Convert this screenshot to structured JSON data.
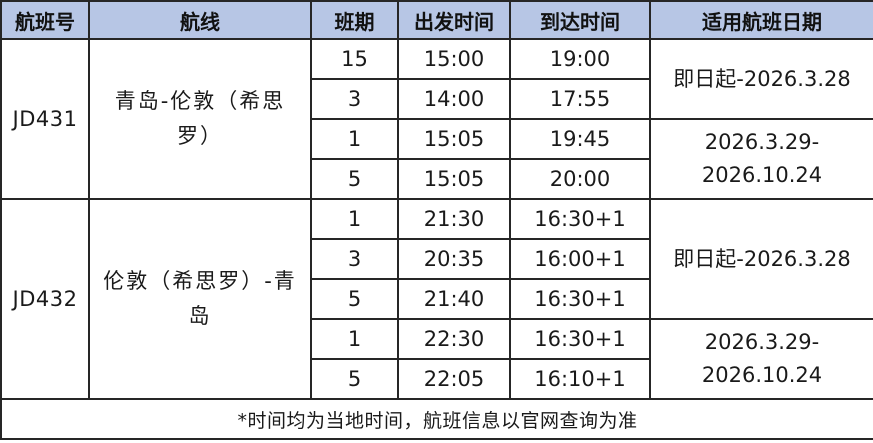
{
  "table": {
    "headers": [
      "航班号",
      "航线",
      "班期",
      "出发时间",
      "到达时间",
      "适用航班日期"
    ],
    "groups": [
      {
        "flight_no": "JD431",
        "route": "青岛-伦敦（希思\n罗）",
        "rows": [
          {
            "days": "15",
            "dep": "15:00",
            "arr": "19:00"
          },
          {
            "days": "3",
            "dep": "14:00",
            "arr": "17:55"
          },
          {
            "days": "1",
            "dep": "15:05",
            "arr": "19:45"
          },
          {
            "days": "5",
            "dep": "15:05",
            "arr": "20:00"
          }
        ],
        "date_ranges": [
          {
            "label": "即日起-2026.3.28",
            "span": 2
          },
          {
            "label": "2026.3.29-\n2026.10.24",
            "span": 2
          }
        ]
      },
      {
        "flight_no": "JD432",
        "route": "伦敦（希思罗）-青\n岛",
        "rows": [
          {
            "days": "1",
            "dep": "21:30",
            "arr": "16:30+1"
          },
          {
            "days": "3",
            "dep": "20:35",
            "arr": "16:00+1"
          },
          {
            "days": "5",
            "dep": "21:40",
            "arr": "16:30+1"
          },
          {
            "days": "1",
            "dep": "22:30",
            "arr": "16:30+1"
          },
          {
            "days": "5",
            "dep": "22:05",
            "arr": "16:10+1"
          }
        ],
        "date_ranges": [
          {
            "label": "即日起-2026.3.28",
            "span": 3
          },
          {
            "label": "2026.3.29-\n2026.10.24",
            "span": 2
          }
        ]
      }
    ],
    "footnote": "*时间均为当地时间，航班信息以官网查询为准"
  },
  "colors": {
    "header_bg": "#b7c6e5",
    "border": "#262626",
    "text": "#1a1a1a"
  }
}
